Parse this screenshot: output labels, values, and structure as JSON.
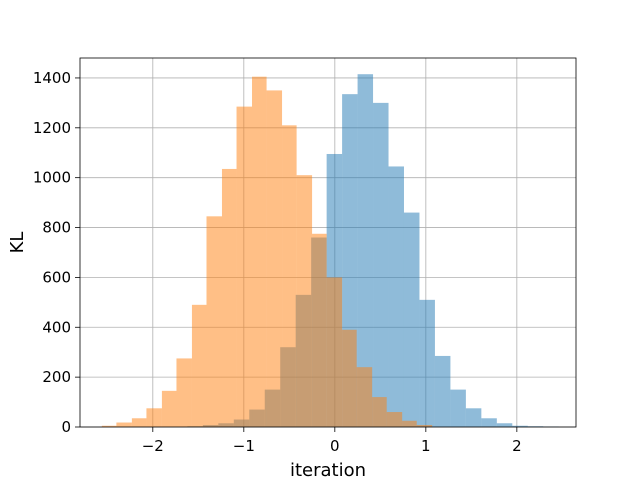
{
  "chart_data": {
    "type": "bar",
    "title": "",
    "xlabel": "iteration",
    "ylabel": "KL",
    "xlim": [
      -2.8,
      2.65
    ],
    "ylim": [
      0,
      1480
    ],
    "xticks": [
      -2,
      -1,
      0,
      1,
      2
    ],
    "yticks": [
      0,
      200,
      400,
      600,
      800,
      1000,
      1200,
      1400
    ],
    "xtick_labels": [
      "−2",
      "−1",
      "0",
      "1",
      "2"
    ],
    "ytick_labels": [
      "0",
      "200",
      "400",
      "600",
      "800",
      "1000",
      "1200",
      "1400"
    ],
    "grid": true,
    "legend": false,
    "series": [
      {
        "color": "#1f77b4",
        "opacity": 0.5,
        "bin_edges": [
          -1.62,
          -1.45,
          -1.28,
          -1.11,
          -0.94,
          -0.77,
          -0.6,
          -0.43,
          -0.26,
          -0.09,
          0.08,
          0.25,
          0.42,
          0.59,
          0.76,
          0.93,
          1.1,
          1.27,
          1.44,
          1.61,
          1.78,
          1.95,
          2.12,
          2.29,
          2.46
        ],
        "values": [
          3,
          8,
          15,
          30,
          70,
          150,
          320,
          530,
          760,
          1095,
          1335,
          1415,
          1300,
          1045,
          860,
          510,
          285,
          150,
          75,
          35,
          15,
          5,
          3,
          2
        ]
      },
      {
        "color": "#ff7f0e",
        "opacity": 0.5,
        "bin_edges": [
          -2.56,
          -2.4,
          -2.23,
          -2.07,
          -1.9,
          -1.74,
          -1.57,
          -1.41,
          -1.24,
          -1.08,
          -0.91,
          -0.75,
          -0.58,
          -0.42,
          -0.25,
          -0.09,
          0.08,
          0.24,
          0.41,
          0.57,
          0.74,
          0.9,
          1.07
        ],
        "values": [
          5,
          18,
          35,
          75,
          145,
          275,
          490,
          845,
          1035,
          1285,
          1405,
          1350,
          1210,
          1010,
          775,
          600,
          390,
          240,
          120,
          60,
          25,
          8
        ]
      }
    ]
  }
}
